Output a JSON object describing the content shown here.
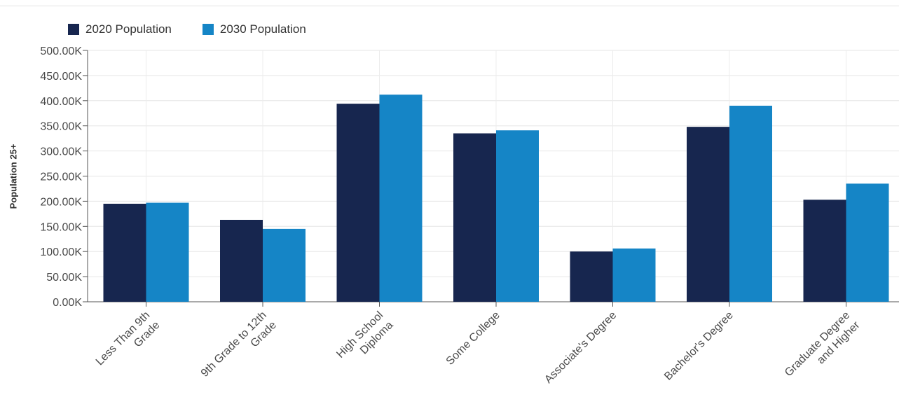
{
  "chart_data": {
    "type": "bar",
    "ylabel": "Population 25+",
    "ylim": [
      0,
      500
    ],
    "yticks": [
      0,
      50,
      100,
      150,
      200,
      250,
      300,
      350,
      400,
      450,
      500
    ],
    "ytick_labels": [
      "0.00K",
      "50.00K",
      "100.00K",
      "150.00K",
      "200.00K",
      "250.00K",
      "300.00K",
      "350.00K",
      "400.00K",
      "450.00K",
      "500.00K"
    ],
    "categories": [
      [
        "Less Than 9th",
        "Grade"
      ],
      [
        "9th Grade to 12th",
        "Grade"
      ],
      [
        "High School",
        "Diploma"
      ],
      [
        "Some College"
      ],
      [
        "Associate's Degree"
      ],
      [
        "Bachelor's Degree"
      ],
      [
        "Graduate Degree",
        "and Higher"
      ]
    ],
    "series": [
      {
        "name": "2020 Population",
        "color": "#17264f",
        "values": [
          195,
          163,
          394,
          335,
          100,
          348,
          203
        ]
      },
      {
        "name": "2030 Population",
        "color": "#1585c6",
        "values": [
          197,
          145,
          412,
          341,
          106,
          390,
          235
        ]
      }
    ],
    "grid": true,
    "legend_position": "top-left"
  }
}
